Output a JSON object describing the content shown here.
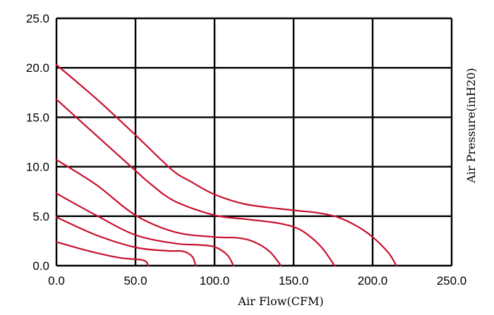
{
  "chart_data": {
    "type": "line",
    "xlabel": "Air Flow(CFM)",
    "ylabel": "Air Pressure(inH20)",
    "xlim": [
      0,
      250
    ],
    "ylim": [
      0,
      25
    ],
    "x_ticks": [
      "0.0",
      "50.0",
      "100.0",
      "150.0",
      "200.0",
      "250.0"
    ],
    "y_ticks": [
      "0.0",
      "5.0",
      "10.0",
      "15.0",
      "20.0",
      "25.0"
    ],
    "grid": true,
    "line_color": "#c8102e",
    "series": [
      {
        "points": [
          [
            0,
            20.3
          ],
          [
            25,
            16.9
          ],
          [
            50,
            13.2
          ],
          [
            73,
            9.7
          ],
          [
            85,
            8.5
          ],
          [
            100,
            7.2
          ],
          [
            120,
            6.2
          ],
          [
            150,
            5.6
          ],
          [
            165,
            5.35
          ],
          [
            178,
            4.9
          ],
          [
            190,
            4.0
          ],
          [
            200,
            2.9
          ],
          [
            210,
            1.3
          ],
          [
            215,
            0
          ]
        ]
      },
      {
        "points": [
          [
            0,
            16.8
          ],
          [
            25,
            13.2
          ],
          [
            50,
            9.6
          ],
          [
            60,
            8.2
          ],
          [
            75,
            6.5
          ],
          [
            100,
            5.1
          ],
          [
            120,
            4.7
          ],
          [
            140,
            4.3
          ],
          [
            152,
            3.8
          ],
          [
            160,
            3.0
          ],
          [
            168,
            1.8
          ],
          [
            176,
            0
          ]
        ]
      },
      {
        "points": [
          [
            0,
            10.7
          ],
          [
            25,
            8.2
          ],
          [
            50,
            5.1
          ],
          [
            75,
            3.4
          ],
          [
            100,
            2.9
          ],
          [
            115,
            2.8
          ],
          [
            125,
            2.4
          ],
          [
            135,
            1.4
          ],
          [
            142,
            0
          ]
        ]
      },
      {
        "points": [
          [
            0,
            7.3
          ],
          [
            25,
            5.1
          ],
          [
            50,
            3.1
          ],
          [
            75,
            2.25
          ],
          [
            90,
            2.1
          ],
          [
            100,
            1.9
          ],
          [
            108,
            1.1
          ],
          [
            112,
            0
          ]
        ]
      },
      {
        "points": [
          [
            0,
            4.9
          ],
          [
            25,
            3.1
          ],
          [
            50,
            1.85
          ],
          [
            70,
            1.5
          ],
          [
            80,
            1.45
          ],
          [
            86,
            0.9
          ],
          [
            88,
            0
          ]
        ]
      },
      {
        "points": [
          [
            0,
            2.4
          ],
          [
            20,
            1.5
          ],
          [
            40,
            0.8
          ],
          [
            55,
            0.55
          ],
          [
            58,
            0
          ]
        ]
      }
    ]
  }
}
